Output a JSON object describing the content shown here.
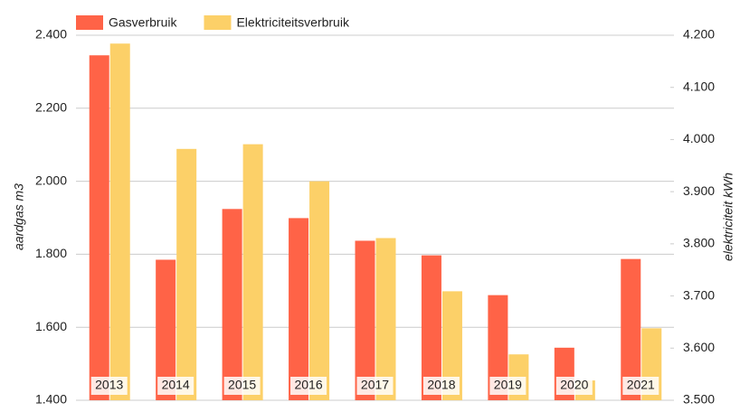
{
  "chart_data": {
    "type": "bar",
    "categories": [
      "2013",
      "2014",
      "2015",
      "2016",
      "2017",
      "2018",
      "2019",
      "2020",
      "2021"
    ],
    "series": [
      {
        "name": "Gasverbruik",
        "color": "#ff6347",
        "axis": "y",
        "values": [
          2345,
          1785,
          1924,
          1899,
          1837,
          1797,
          1688,
          1544,
          1787
        ]
      },
      {
        "name": "Elektriciteitsverbruik",
        "color": "#fcd068",
        "axis": "y2",
        "values": [
          4184,
          3982,
          3991,
          3920,
          3811,
          3709,
          3588,
          3538,
          3638
        ]
      }
    ],
    "ylabel": "aardgas m3",
    "y2label": "elektriciteit kWh",
    "ylim": [
      1400,
      2400
    ],
    "yticks": [
      {
        "value": 1400,
        "label": "1.400"
      },
      {
        "value": 1600,
        "label": "1.600"
      },
      {
        "value": 1800,
        "label": "1.800"
      },
      {
        "value": 2000,
        "label": "2.000"
      },
      {
        "value": 2200,
        "label": "2.200"
      },
      {
        "value": 2400,
        "label": "2.400"
      }
    ],
    "y2lim": [
      3500,
      4200
    ],
    "y2ticks": [
      {
        "value": 3500,
        "label": "3.500"
      },
      {
        "value": 3600,
        "label": "3.600"
      },
      {
        "value": 3700,
        "label": "3.700"
      },
      {
        "value": 3800,
        "label": "3.800"
      },
      {
        "value": 3900,
        "label": "3.900"
      },
      {
        "value": 4000,
        "label": "4.000"
      },
      {
        "value": 4100,
        "label": "4.100"
      },
      {
        "value": 4200,
        "label": "4.200"
      }
    ],
    "grid": true,
    "legend": "top-left"
  }
}
